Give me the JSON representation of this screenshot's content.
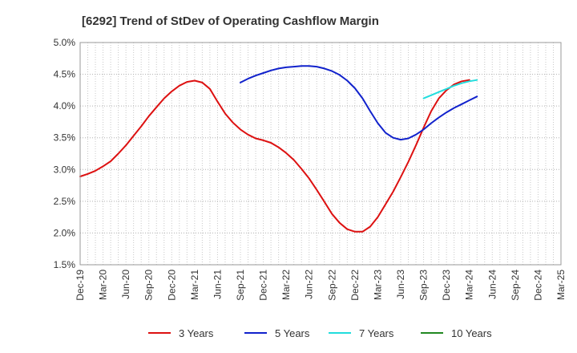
{
  "chart_data": {
    "type": "line",
    "title": "[6292]  Trend of StDev of Operating Cashflow Margin",
    "xlabel": "",
    "ylabel": "",
    "x": [
      "Dec-19",
      "Mar-20",
      "Jun-20",
      "Sep-20",
      "Dec-20",
      "Mar-21",
      "Jun-21",
      "Sep-21",
      "Dec-21",
      "Mar-22",
      "Jun-22",
      "Sep-22",
      "Dec-22",
      "Mar-23",
      "Jun-23",
      "Sep-23",
      "Dec-23",
      "Mar-24",
      "Jun-24",
      "Sep-24",
      "Dec-24",
      "Mar-25"
    ],
    "y_ticks": [
      "1.5%",
      "2.0%",
      "2.5%",
      "3.0%",
      "3.5%",
      "4.0%",
      "4.5%",
      "5.0%"
    ],
    "ylim": [
      1.5,
      5.0
    ],
    "grid": true,
    "legend_position": "bottom",
    "series": [
      {
        "name": "3 Years",
        "color": "#dd1111",
        "points": [
          [
            "Dec-19",
            2.89
          ],
          [
            "Jan-20",
            2.93
          ],
          [
            "Feb-20",
            2.98
          ],
          [
            "Mar-20",
            3.05
          ],
          [
            "Apr-20",
            3.13
          ],
          [
            "May-20",
            3.25
          ],
          [
            "Jun-20",
            3.38
          ],
          [
            "Jul-20",
            3.53
          ],
          [
            "Aug-20",
            3.68
          ],
          [
            "Sep-20",
            3.84
          ],
          [
            "Oct-20",
            3.98
          ],
          [
            "Nov-20",
            4.12
          ],
          [
            "Dec-20",
            4.23
          ],
          [
            "Jan-21",
            4.32
          ],
          [
            "Feb-21",
            4.38
          ],
          [
            "Mar-21",
            4.4
          ],
          [
            "Apr-21",
            4.37
          ],
          [
            "May-21",
            4.27
          ],
          [
            "Jun-21",
            4.07
          ],
          [
            "Jul-21",
            3.88
          ],
          [
            "Aug-21",
            3.74
          ],
          [
            "Sep-21",
            3.63
          ],
          [
            "Oct-21",
            3.55
          ],
          [
            "Nov-21",
            3.49
          ],
          [
            "Dec-21",
            3.46
          ],
          [
            "Jan-22",
            3.42
          ],
          [
            "Feb-22",
            3.35
          ],
          [
            "Mar-22",
            3.26
          ],
          [
            "Apr-22",
            3.15
          ],
          [
            "May-22",
            3.01
          ],
          [
            "Jun-22",
            2.86
          ],
          [
            "Jul-22",
            2.68
          ],
          [
            "Aug-22",
            2.49
          ],
          [
            "Sep-22",
            2.3
          ],
          [
            "Oct-22",
            2.16
          ],
          [
            "Nov-22",
            2.06
          ],
          [
            "Dec-22",
            2.02
          ],
          [
            "Jan-23",
            2.02
          ],
          [
            "Feb-23",
            2.1
          ],
          [
            "Mar-23",
            2.25
          ],
          [
            "Apr-23",
            2.45
          ],
          [
            "May-23",
            2.65
          ],
          [
            "Jun-23",
            2.88
          ],
          [
            "Jul-23",
            3.12
          ],
          [
            "Aug-23",
            3.38
          ],
          [
            "Sep-23",
            3.66
          ],
          [
            "Oct-23",
            3.92
          ],
          [
            "Nov-23",
            4.12
          ],
          [
            "Dec-23",
            4.25
          ],
          [
            "Jan-24",
            4.34
          ],
          [
            "Feb-24",
            4.39
          ],
          [
            "Mar-24",
            4.41
          ]
        ]
      },
      {
        "name": "5 Years",
        "color": "#1122cc",
        "points": [
          [
            "Sep-21",
            4.37
          ],
          [
            "Oct-21",
            4.43
          ],
          [
            "Nov-21",
            4.48
          ],
          [
            "Dec-21",
            4.52
          ],
          [
            "Jan-22",
            4.56
          ],
          [
            "Feb-22",
            4.59
          ],
          [
            "Mar-22",
            4.61
          ],
          [
            "Apr-22",
            4.62
          ],
          [
            "May-22",
            4.63
          ],
          [
            "Jun-22",
            4.63
          ],
          [
            "Jul-22",
            4.62
          ],
          [
            "Aug-22",
            4.59
          ],
          [
            "Sep-22",
            4.55
          ],
          [
            "Oct-22",
            4.49
          ],
          [
            "Nov-22",
            4.4
          ],
          [
            "Dec-22",
            4.28
          ],
          [
            "Jan-23",
            4.12
          ],
          [
            "Feb-23",
            3.92
          ],
          [
            "Mar-23",
            3.73
          ],
          [
            "Apr-23",
            3.58
          ],
          [
            "May-23",
            3.5
          ],
          [
            "Jun-23",
            3.47
          ],
          [
            "Jul-23",
            3.49
          ],
          [
            "Aug-23",
            3.55
          ],
          [
            "Sep-23",
            3.63
          ],
          [
            "Oct-23",
            3.73
          ],
          [
            "Nov-23",
            3.82
          ],
          [
            "Dec-23",
            3.9
          ],
          [
            "Jan-24",
            3.97
          ],
          [
            "Feb-24",
            4.03
          ],
          [
            "Mar-24",
            4.09
          ],
          [
            "Apr-24",
            4.15
          ]
        ]
      },
      {
        "name": "7 Years",
        "color": "#22dddd",
        "points": [
          [
            "Sep-23",
            4.12
          ],
          [
            "Oct-23",
            4.17
          ],
          [
            "Nov-23",
            4.22
          ],
          [
            "Dec-23",
            4.27
          ],
          [
            "Jan-24",
            4.32
          ],
          [
            "Feb-24",
            4.36
          ],
          [
            "Mar-24",
            4.39
          ],
          [
            "Apr-24",
            4.41
          ]
        ]
      },
      {
        "name": "10 Years",
        "color": "#228822",
        "points": []
      }
    ]
  }
}
